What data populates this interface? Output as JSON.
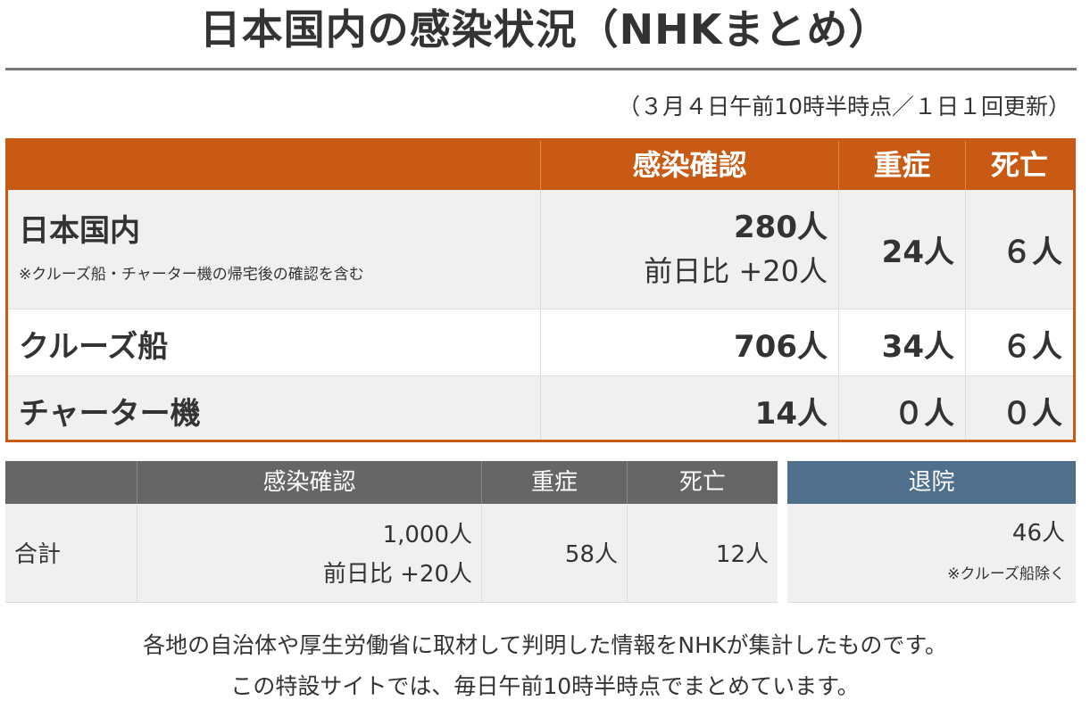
{
  "title": "日本国内の感染状況（NHKまとめ）",
  "timestamp": "（３月４日午前10時半時点／１日１回更新）",
  "colors": {
    "header_orange": "#c85a14",
    "header_gray": "#666666",
    "header_blue": "#4f6f8c",
    "row_alt": "#f0f0f0",
    "text": "#333333"
  },
  "main_table": {
    "headers": {
      "confirmed": "感染確認",
      "severe": "重症",
      "deaths": "死亡"
    },
    "rows": [
      {
        "name": "日本国内",
        "note": "※クルーズ船・チャーター機の帰宅後の確認を含む",
        "confirmed": "280人",
        "confirmed_change": "前日比 +20人",
        "severe": "24人",
        "deaths": "６人"
      },
      {
        "name": "クルーズ船",
        "confirmed": "706人",
        "severe": "34人",
        "deaths": "６人"
      },
      {
        "name": "チャーター機",
        "confirmed": "14人",
        "severe": "０人",
        "deaths": "０人"
      }
    ]
  },
  "summary_table": {
    "headers": {
      "confirmed": "感染確認",
      "severe": "重症",
      "deaths": "死亡"
    },
    "total": {
      "label": "合計",
      "confirmed": "1,000人",
      "confirmed_change": "前日比 +20人",
      "severe": "58人",
      "deaths": "12人"
    }
  },
  "discharged": {
    "header": "退院",
    "value": "46人",
    "note": "※クルーズ船除く"
  },
  "footer": {
    "line1": "各地の自治体や厚生労働省に取材して判明した情報をNHKが集計したものです。",
    "line2": "この特設サイトでは、毎日午前10時半時点でまとめています。"
  }
}
